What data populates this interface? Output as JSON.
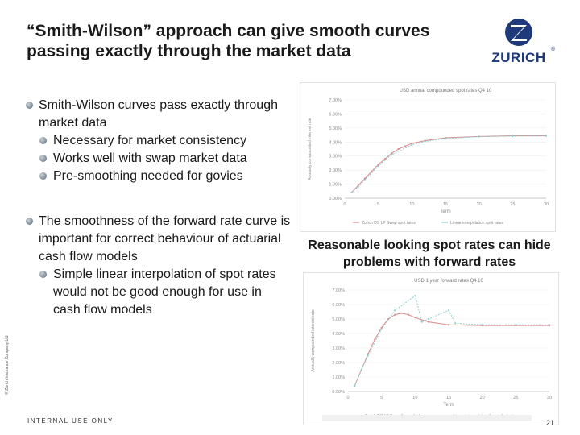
{
  "title": "“Smith-Wilson” approach can give smooth curves passing exactly through the market data",
  "logo": {
    "text": "ZURICH",
    "reg": "®"
  },
  "bullets": [
    {
      "level": 1,
      "text": "Smith-Wilson curves pass exactly through market data"
    },
    {
      "level": 2,
      "text": "Necessary for market consistency"
    },
    {
      "level": 2,
      "text": "Works well with swap market data"
    },
    {
      "level": 2,
      "text": "Pre-smoothing needed for govies"
    },
    {
      "level": 1,
      "text": "The smoothness of the forward rate curve is important for correct behaviour of actuarial cash flow models"
    },
    {
      "level": 2,
      "text": "Simple linear interpolation of spot rates would not be good enough for use in cash flow models"
    }
  ],
  "caption": "Reasonable looking spot rates can hide problems with forward rates",
  "footer": "INTERNAL USE ONLY",
  "page_number": "21",
  "side_text": "© Zurich Insurance Company Ltd",
  "charts": [
    {
      "title": "USD annual compounded spot rates Q4 10",
      "ylabel": "Annually compounded interest rate",
      "xlabel": "Term",
      "yticks": [
        "0.00%",
        "1.00%",
        "2.00%",
        "3.00%",
        "4.00%",
        "5.00%",
        "6.00%",
        "7.00%"
      ],
      "xticks": [
        "0",
        "5",
        "10",
        "15",
        "20",
        "25",
        "30"
      ],
      "legend": [
        "Zurich DS LP Swap spot rates",
        "Linear interpolation spot rates"
      ],
      "colors": {
        "series1": "#d98a8a",
        "series2": "#8fcfcf"
      }
    },
    {
      "title": "USD 1 year forward rates Q4 10",
      "ylabel": "Annually compounded interest rate",
      "xlabel": "Term",
      "yticks": [
        "0.00%",
        "1.00%",
        "2.00%",
        "3.00%",
        "4.00%",
        "5.00%",
        "6.00%",
        "7.00%"
      ],
      "xticks": [
        "0",
        "5",
        "10",
        "15",
        "20",
        "25",
        "30"
      ],
      "legend": [
        "Zurich DS LP Swap 1 year fwd rates",
        "Linear interpolation 1 year fwd rates"
      ],
      "colors": {
        "series1": "#d98a8a",
        "series2": "#8fcfcf"
      }
    }
  ],
  "chart_data": [
    {
      "type": "line",
      "title": "USD annual compounded spot rates Q4 10",
      "xlabel": "Term",
      "ylabel": "Annually compounded interest rate",
      "xlim": [
        0,
        30
      ],
      "ylim": [
        0,
        7
      ],
      "series": [
        {
          "name": "Zurich DS LP Swap spot rates",
          "x": [
            1,
            2,
            3,
            4,
            5,
            6,
            7,
            8,
            9,
            10,
            12,
            15,
            20,
            25,
            30
          ],
          "y": [
            0.4,
            0.9,
            1.4,
            1.9,
            2.4,
            2.8,
            3.2,
            3.5,
            3.7,
            3.9,
            4.1,
            4.3,
            4.4,
            4.45,
            4.45
          ]
        },
        {
          "name": "Linear interpolation spot rates",
          "x": [
            1,
            2,
            3,
            5,
            7,
            10,
            12,
            15,
            20,
            25,
            30
          ],
          "y": [
            0.4,
            0.8,
            1.3,
            2.3,
            3.1,
            3.8,
            4.05,
            4.25,
            4.38,
            4.42,
            4.43
          ]
        }
      ]
    },
    {
      "type": "line",
      "title": "USD 1 year forward rates Q4 10",
      "xlabel": "Term",
      "ylabel": "Annually compounded interest rate",
      "xlim": [
        0,
        30
      ],
      "ylim": [
        0,
        7
      ],
      "series": [
        {
          "name": "Zurich DS LP Swap 1 year fwd rates",
          "x": [
            1,
            2,
            3,
            4,
            5,
            6,
            7,
            8,
            9,
            10,
            12,
            15,
            20,
            25,
            30
          ],
          "y": [
            0.4,
            1.5,
            2.6,
            3.6,
            4.4,
            5.0,
            5.3,
            5.4,
            5.3,
            5.1,
            4.8,
            4.6,
            4.55,
            4.55,
            4.55
          ]
        },
        {
          "name": "Linear interpolation 1 year fwd rates",
          "x": [
            1,
            2,
            3,
            5,
            7,
            10,
            11,
            12,
            15,
            16,
            20,
            25,
            30
          ],
          "y": [
            0.4,
            1.5,
            2.5,
            4.3,
            5.6,
            6.6,
            4.8,
            5.0,
            5.6,
            4.7,
            4.6,
            4.6,
            4.6
          ]
        }
      ]
    }
  ]
}
